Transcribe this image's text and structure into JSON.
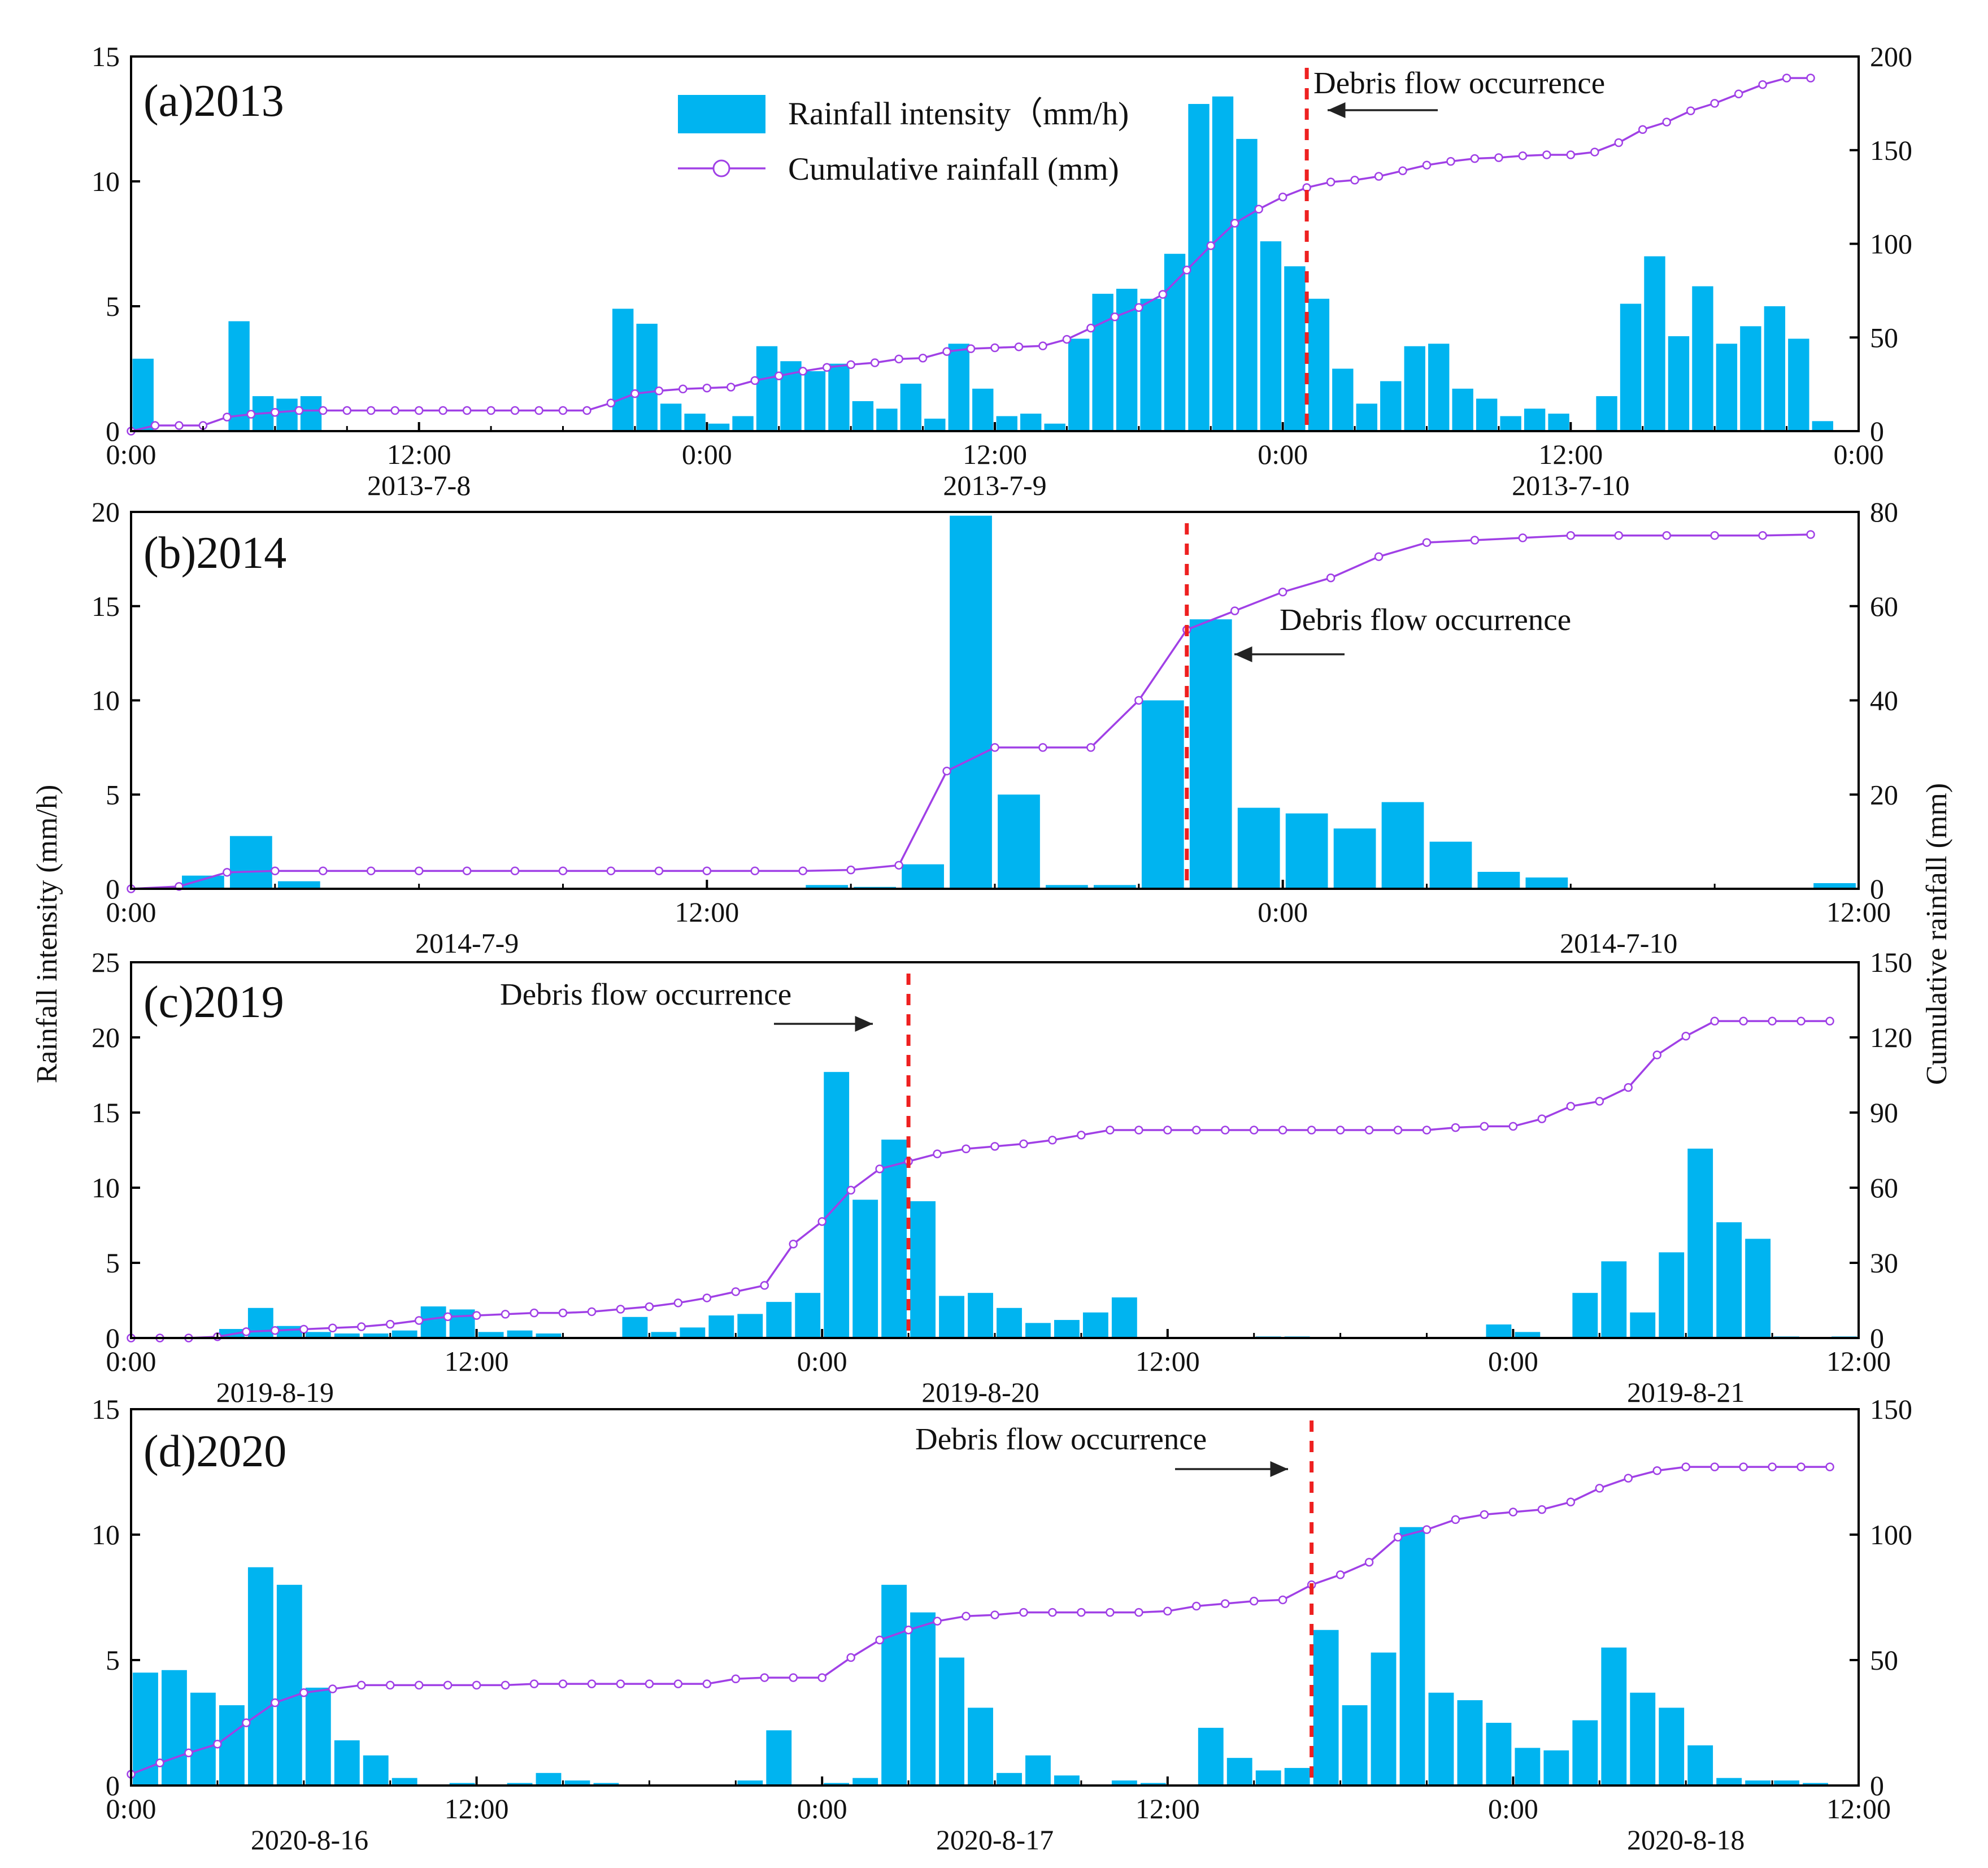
{
  "colors": {
    "bar": "#00b4f0",
    "line": "#a040e6",
    "marker_fill": "#ffffff",
    "event_line": "#ee2020",
    "arrow": "#222222",
    "axis": "#000000"
  },
  "axis_titles": {
    "left": "Rainfall  intensity (mm/h)",
    "right": "Cumulative rainfall (mm)"
  },
  "legend": {
    "bar_label": "Rainfall intensity（mm/h)",
    "line_label": "Cumulative rainfall (mm)"
  },
  "chart_data": [
    {
      "type": "bar",
      "panel": "a",
      "title": "(a)2013",
      "annotation": "Debris flow occurrence",
      "x_unit": "hour",
      "xlim": [
        0,
        72
      ],
      "ylim_left": [
        0,
        15
      ],
      "yticks_left": [
        0,
        5,
        10,
        15
      ],
      "ylim_right": [
        0,
        200
      ],
      "yticks_right": [
        0,
        50,
        100,
        150,
        200
      ],
      "x_ticks": [
        {
          "x": 0,
          "label": "0:00"
        },
        {
          "x": 12,
          "label": "12:00"
        },
        {
          "x": 24,
          "label": "0:00"
        },
        {
          "x": 36,
          "label": "12:00"
        },
        {
          "x": 48,
          "label": "0:00"
        },
        {
          "x": 60,
          "label": "12:00"
        },
        {
          "x": 72,
          "label": "0:00"
        }
      ],
      "date_labels": [
        {
          "x": 12,
          "label": "2013-7-8"
        },
        {
          "x": 36,
          "label": "2013-7-9"
        },
        {
          "x": 60,
          "label": "2013-7-10"
        }
      ],
      "event_x": 49,
      "series": [
        {
          "name": "Rainfall intensity（mm/h)",
          "kind": "bar",
          "axis": "left",
          "values": [
            2.9,
            0,
            0,
            0,
            4.4,
            1.4,
            1.3,
            1.4,
            0,
            0,
            0,
            0,
            0,
            0,
            0,
            0,
            0,
            0,
            0,
            0,
            4.9,
            4.3,
            1.1,
            0.7,
            0.3,
            0.6,
            3.4,
            2.8,
            2.4,
            2.7,
            1.2,
            0.9,
            1.9,
            0.5,
            3.5,
            1.7,
            0.6,
            0.7,
            0.3,
            3.7,
            5.5,
            5.7,
            5.3,
            7.1,
            13.1,
            13.4,
            11.7,
            7.6,
            6.6,
            5.3,
            2.5,
            1.1,
            2,
            3.4,
            3.5,
            1.7,
            1.3,
            0.6,
            0.9,
            0.7,
            0,
            1.4,
            5.1,
            7,
            3.8,
            5.8,
            3.5,
            4.2,
            5,
            3.7,
            0.4
          ]
        },
        {
          "name": "Cumulative rainfall (mm)",
          "kind": "line",
          "axis": "right",
          "values": [
            0,
            3,
            3,
            3,
            7.5,
            9,
            10,
            11,
            11,
            11,
            11,
            11,
            11,
            11,
            11,
            11,
            11,
            11,
            11,
            11,
            15,
            20,
            21.5,
            22.5,
            23,
            23.5,
            27,
            29.5,
            32,
            34,
            35.5,
            36.5,
            38.5,
            39,
            42.5,
            44,
            44.5,
            45,
            45.5,
            49,
            55,
            61,
            66,
            73,
            86,
            99,
            111,
            118.5,
            125,
            130,
            133,
            134,
            136,
            139,
            142,
            144,
            145.5,
            146,
            147,
            147.5,
            147.5,
            149,
            154,
            161,
            165,
            171,
            175,
            180,
            185,
            188.5,
            188.5
          ]
        }
      ]
    },
    {
      "type": "bar",
      "panel": "b",
      "title": "(b)2014",
      "annotation": "Debris flow occurrence",
      "x_unit": "hour",
      "xlim": [
        0,
        36
      ],
      "ylim_left": [
        0,
        20
      ],
      "yticks_left": [
        0,
        5,
        10,
        15,
        20
      ],
      "ylim_right": [
        0,
        80
      ],
      "yticks_right": [
        0,
        20,
        40,
        60,
        80
      ],
      "x_ticks": [
        {
          "x": 0,
          "label": "0:00"
        },
        {
          "x": 12,
          "label": "12:00"
        },
        {
          "x": 24,
          "label": "0:00"
        },
        {
          "x": 36,
          "label": "12:00"
        }
      ],
      "date_labels": [
        {
          "x": 7,
          "label": "2014-7-9"
        },
        {
          "x": 31,
          "label": "2014-7-10"
        }
      ],
      "event_x": 22,
      "series": [
        {
          "name": "Rainfall intensity（mm/h)",
          "kind": "bar",
          "axis": "left",
          "values": [
            0,
            0.7,
            2.8,
            0.4,
            0,
            0,
            0,
            0,
            0,
            0,
            0,
            0,
            0,
            0,
            0.2,
            0.1,
            1.3,
            19.8,
            5,
            0.2,
            0.2,
            10,
            14.3,
            4.3,
            4,
            3.2,
            4.6,
            2.5,
            0.9,
            0.6,
            0,
            0,
            0,
            0,
            0,
            0.3
          ]
        },
        {
          "name": "Cumulative rainfall (mm)",
          "kind": "line",
          "axis": "right",
          "values": [
            0,
            0.5,
            3.5,
            3.8,
            3.8,
            3.8,
            3.8,
            3.8,
            3.8,
            3.8,
            3.8,
            3.8,
            3.8,
            3.8,
            3.8,
            4,
            5,
            25,
            30,
            30,
            30,
            40,
            55,
            59,
            63,
            66,
            70.5,
            73.5,
            74,
            74.5,
            75,
            75,
            75,
            75,
            75,
            75.2
          ]
        }
      ]
    },
    {
      "type": "bar",
      "panel": "c",
      "title": "(c)2019",
      "annotation": "Debris flow occurrence",
      "x_unit": "hour",
      "xlim": [
        0,
        60
      ],
      "ylim_left": [
        0,
        25
      ],
      "yticks_left": [
        0,
        5,
        10,
        15,
        20,
        25
      ],
      "ylim_right": [
        0,
        150
      ],
      "yticks_right": [
        0,
        30,
        60,
        90,
        120,
        150
      ],
      "x_ticks": [
        {
          "x": 0,
          "label": "0:00"
        },
        {
          "x": 12,
          "label": "12:00"
        },
        {
          "x": 24,
          "label": "0:00"
        },
        {
          "x": 36,
          "label": "12:00"
        },
        {
          "x": 48,
          "label": "0:00"
        },
        {
          "x": 60,
          "label": "12:00"
        }
      ],
      "date_labels": [
        {
          "x": 5,
          "label": "2019-8-19"
        },
        {
          "x": 29.5,
          "label": "2019-8-20"
        },
        {
          "x": 54,
          "label": "2019-8-21"
        }
      ],
      "event_x": 27,
      "series": [
        {
          "name": "Rainfall intensity（mm/h)",
          "kind": "bar",
          "axis": "left",
          "values": [
            0,
            0,
            0,
            0.6,
            2,
            0.8,
            0.4,
            0.3,
            0.3,
            0.5,
            2.1,
            1.9,
            0.4,
            0.5,
            0.3,
            0,
            0,
            1.4,
            0.4,
            0.7,
            1.5,
            1.6,
            2.4,
            3,
            17.7,
            9.2,
            13.2,
            9.1,
            2.8,
            3,
            2,
            1,
            1.2,
            1.7,
            2.7,
            0,
            0,
            0,
            0,
            0.1,
            0.1,
            0,
            0,
            0,
            0,
            0,
            0,
            0.9,
            0.4,
            0,
            3,
            5.1,
            1.7,
            5.7,
            12.6,
            7.7,
            6.6,
            0.1,
            0,
            0.1
          ]
        },
        {
          "name": "Cumulative rainfall (mm)",
          "kind": "line",
          "axis": "right",
          "values": [
            0,
            0,
            0,
            0.5,
            2.5,
            3,
            3.5,
            4,
            4.5,
            5.5,
            7,
            8.5,
            9,
            9.5,
            10,
            10,
            10.5,
            11.5,
            12.5,
            14,
            16,
            18.5,
            21,
            37.5,
            46.5,
            59,
            67.5,
            70.5,
            73.5,
            75.5,
            76.5,
            77.5,
            79,
            81,
            83,
            83,
            83,
            83,
            83,
            83,
            83,
            83,
            83,
            83,
            83,
            83,
            84,
            84.5,
            84.5,
            87.5,
            92.5,
            94.5,
            100,
            113,
            120.5,
            126.5,
            126.5,
            126.5,
            126.5,
            126.5
          ]
        }
      ]
    },
    {
      "type": "bar",
      "panel": "d",
      "title": "(d)2020",
      "annotation": "Debris flow occurrence",
      "x_unit": "hour",
      "xlim": [
        0,
        60
      ],
      "ylim_left": [
        0,
        15
      ],
      "yticks_left": [
        0,
        5,
        10,
        15
      ],
      "ylim_right": [
        0,
        150
      ],
      "yticks_right": [
        0,
        50,
        100,
        150
      ],
      "x_ticks": [
        {
          "x": 0,
          "label": "0:00"
        },
        {
          "x": 12,
          "label": "12:00"
        },
        {
          "x": 24,
          "label": "0:00"
        },
        {
          "x": 36,
          "label": "12:00"
        },
        {
          "x": 48,
          "label": "0:00"
        },
        {
          "x": 60,
          "label": "12:00"
        }
      ],
      "date_labels": [
        {
          "x": 6.2,
          "label": "2020-8-16"
        },
        {
          "x": 30,
          "label": "2020-8-17"
        },
        {
          "x": 54,
          "label": "2020-8-18"
        }
      ],
      "event_x": 41,
      "series": [
        {
          "name": "Rainfall intensity（mm/h)",
          "kind": "bar",
          "axis": "left",
          "values": [
            4.5,
            4.6,
            3.7,
            3.2,
            8.7,
            8,
            3.9,
            1.8,
            1.2,
            0.3,
            0,
            0.1,
            0,
            0.1,
            0.5,
            0.2,
            0.1,
            0,
            0,
            0,
            0,
            0.2,
            2.2,
            0,
            0.1,
            0.3,
            8,
            6.9,
            5.1,
            3.1,
            0.5,
            1.2,
            0.4,
            0,
            0.2,
            0.1,
            0,
            2.3,
            1.1,
            0.6,
            0.7,
            6.2,
            3.2,
            5.3,
            10.3,
            3.7,
            3.4,
            2.5,
            1.5,
            1.4,
            2.6,
            5.5,
            3.7,
            3.1,
            1.6,
            0.3,
            0.2,
            0.2,
            0.1,
            0
          ]
        },
        {
          "name": "Cumulative rainfall (mm)",
          "kind": "line",
          "axis": "right",
          "values": [
            4.5,
            9,
            13,
            16.5,
            25,
            33,
            37,
            38.5,
            40,
            40,
            40,
            40,
            40,
            40,
            40.5,
            40.5,
            40.5,
            40.5,
            40.5,
            40.5,
            40.5,
            42.5,
            43,
            43,
            43,
            51,
            58,
            62,
            65.5,
            67.5,
            68,
            69,
            69,
            69,
            69,
            69,
            69.5,
            71.5,
            72.5,
            73.5,
            74,
            80,
            84,
            89,
            99,
            102,
            106,
            108,
            109,
            110,
            113,
            118.5,
            122.5,
            125.5,
            127,
            127,
            127,
            127,
            127,
            127
          ]
        }
      ]
    }
  ]
}
